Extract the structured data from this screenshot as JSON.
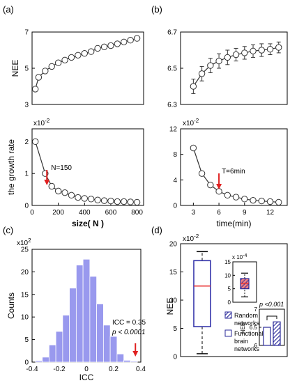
{
  "chart_data": [
    {
      "panel": "(a)",
      "type": "line",
      "ylabel": "NEE",
      "ylim": [
        3,
        7
      ],
      "xlim": [
        0,
        850
      ],
      "y_ticks": [
        3,
        5,
        7
      ],
      "x": [
        25,
        50,
        100,
        150,
        200,
        250,
        300,
        350,
        400,
        450,
        500,
        550,
        600,
        650,
        700,
        750,
        800
      ],
      "y": [
        3.85,
        4.5,
        4.85,
        5.1,
        5.3,
        5.45,
        5.6,
        5.72,
        5.82,
        5.92,
        6.1,
        6.18,
        6.25,
        6.35,
        6.45,
        6.55,
        6.65
      ],
      "marker": "circle",
      "color": "#333333"
    },
    {
      "panel": "(b)",
      "type": "line",
      "ylim": [
        6.3,
        6.7
      ],
      "xlim": [
        1.5,
        14
      ],
      "y_ticks": [
        6.3,
        6.5,
        6.7
      ],
      "x": [
        3,
        4,
        5,
        6,
        7,
        8,
        9,
        10,
        11,
        12,
        13
      ],
      "y": [
        6.4,
        6.47,
        6.515,
        6.54,
        6.56,
        6.575,
        6.585,
        6.595,
        6.6,
        6.605,
        6.615
      ],
      "error": [
        0.04,
        0.04,
        0.04,
        0.04,
        0.04,
        0.035,
        0.035,
        0.035,
        0.035,
        0.03,
        0.03
      ],
      "marker": "circle",
      "color": "#333333"
    },
    {
      "panel": "(a)",
      "type": "line",
      "ylabel": "the growth rate",
      "xlabel": "size( N )",
      "scale_label": "x10",
      "scale_exp": "-2",
      "ylim": [
        0,
        2.4
      ],
      "xlim": [
        0,
        850
      ],
      "y_ticks": [
        0,
        1,
        2
      ],
      "x_ticks": [
        0,
        200,
        400,
        600,
        800
      ],
      "x": [
        25,
        100,
        150,
        200,
        250,
        300,
        350,
        400,
        450,
        500,
        550,
        600,
        650,
        700,
        750,
        800
      ],
      "y": [
        2.0,
        1.0,
        0.6,
        0.45,
        0.4,
        0.32,
        0.25,
        0.22,
        0.2,
        0.17,
        0.15,
        0.14,
        0.12,
        0.12,
        0.11,
        0.1
      ],
      "marker": "circle",
      "color": "#333333",
      "arrow_x": 150,
      "annotation": "N=150"
    },
    {
      "panel": "(b)",
      "type": "line",
      "xlabel": "time(min)",
      "scale_label": "x10",
      "scale_exp": "-2",
      "ylim": [
        0,
        12
      ],
      "xlim": [
        1.5,
        14
      ],
      "y_ticks": [
        0,
        4,
        8,
        12
      ],
      "x_ticks": [
        3,
        6,
        9,
        12
      ],
      "x": [
        3,
        4,
        5,
        6,
        7,
        8,
        9,
        10,
        11,
        12,
        13
      ],
      "y": [
        9.0,
        5.0,
        3.2,
        2.2,
        1.6,
        1.3,
        1.0,
        0.8,
        0.7,
        0.6,
        0.5
      ],
      "marker": "circle",
      "color": "#333333",
      "arrow_x": 6,
      "annotation": "T=6min"
    },
    {
      "panel": "(c)",
      "type": "bar",
      "ylabel": "Counts",
      "xlabel": "ICC",
      "scale_label": "x10",
      "scale_exp": "2",
      "ylim": [
        0,
        25
      ],
      "xlim": [
        -0.4,
        0.4
      ],
      "y_ticks": [
        0,
        5,
        10,
        15,
        20,
        25
      ],
      "x_ticks": [
        -0.4,
        -0.2,
        0,
        0.2,
        0.4
      ],
      "bins": [
        -0.35,
        -0.3,
        -0.25,
        -0.2,
        -0.15,
        -0.1,
        -0.05,
        0,
        0.05,
        0.1,
        0.15,
        0.2,
        0.25,
        0.3,
        0.35
      ],
      "values": [
        0.3,
        1.1,
        3.8,
        6.8,
        10.4,
        16.4,
        21.5,
        22.8,
        19.0,
        12.9,
        8.2,
        5.7,
        1.8,
        0.4,
        0.2
      ],
      "color": "#9999ee",
      "arrow_x": 0.35,
      "annotation_1": "ICC = 0.35",
      "annotation_2": "p < 0.0001"
    },
    {
      "panel": "(d)",
      "type": "boxplot",
      "ylabel": "NEE",
      "scale_label": "x10",
      "scale_exp": "-2",
      "ylim": [
        0,
        20
      ],
      "y_ticks": [
        0,
        5,
        10,
        15,
        20
      ],
      "box": {
        "whisker_low": 0.5,
        "q1": 5.3,
        "median": 12.5,
        "q3": 17.0,
        "whisker_high": 18.6
      },
      "box_color": "#3333aa",
      "median_color": "#e83030",
      "inset_box": {
        "scale_label": "x 10",
        "scale_exp": "-4",
        "ylim": [
          0,
          15
        ],
        "y_ticks": [
          0,
          5,
          10,
          15
        ],
        "whisker_low": 2,
        "q1": 5,
        "median": 7,
        "q3": 8.8,
        "whisker_high": 10.8
      },
      "inset_bar": {
        "ylabel": "NEE",
        "ylim": [
          6,
          7
        ],
        "y_ticks": [
          6,
          6.5,
          7
        ],
        "values": [
          6.5,
          6.65
        ],
        "annotation": "p <0.001"
      },
      "legend": [
        {
          "line1": "Random",
          "line2": "networks",
          "style": "hatched"
        },
        {
          "line1": "Functional",
          "line2": "brain",
          "line3": "networks",
          "style": "open"
        }
      ]
    }
  ],
  "panel_labels": {
    "a": "(a)",
    "b": "(b)",
    "c": "(c)",
    "d": "(d)"
  }
}
